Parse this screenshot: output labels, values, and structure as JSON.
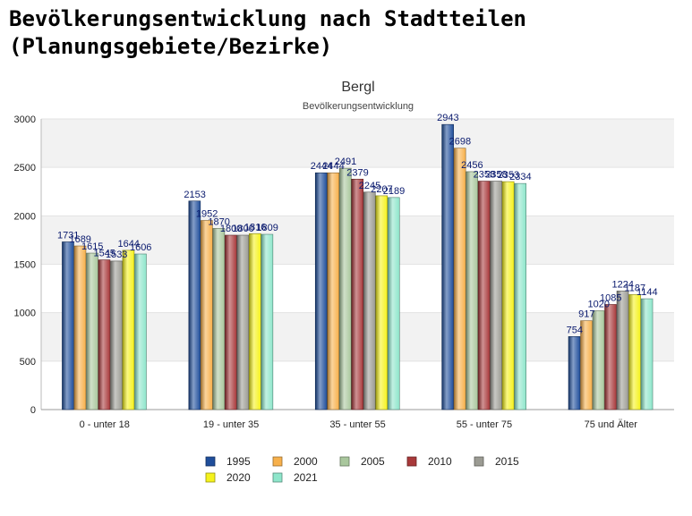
{
  "page": {
    "title_line1": "Bevölkerungsentwicklung nach Stadtteilen",
    "title_line2": "(Planungsgebiete/Bezirke)"
  },
  "chart_data": {
    "type": "bar",
    "title": "Bergl",
    "subtitle": "Bevölkerungsentwicklung",
    "categories": [
      "0 - unter 18",
      "19 - unter 35",
      "35 - unter 55",
      "55 - unter 75",
      "75 und Älter"
    ],
    "ylim": [
      0,
      3000
    ],
    "yticks": [
      0,
      500,
      1000,
      1500,
      2000,
      2500,
      3000
    ],
    "grid": "horizontal alternating bands",
    "legend_position": "bottom",
    "series": [
      {
        "name": "1995",
        "color": "#1f4e9b",
        "values": [
          1731,
          2153,
          2444,
          2943,
          754
        ]
      },
      {
        "name": "2000",
        "color": "#f7b04b",
        "values": [
          1689,
          1952,
          2444,
          2698,
          917
        ]
      },
      {
        "name": "2005",
        "color": "#a9c79d",
        "values": [
          1615,
          1870,
          2491,
          2456,
          1020
        ]
      },
      {
        "name": "2010",
        "color": "#a8383a",
        "values": [
          1545,
          1800,
          2379,
          2358,
          1085
        ]
      },
      {
        "name": "2015",
        "color": "#9b9b93",
        "values": [
          1533,
          1800,
          2245,
          2358,
          1224
        ]
      },
      {
        "name": "2020",
        "color": "#f5f21c",
        "values": [
          1644,
          1816,
          2207,
          2353,
          1187
        ]
      },
      {
        "name": "2021",
        "color": "#8ee6cb",
        "values": [
          1606,
          1809,
          2189,
          2334,
          1144
        ]
      }
    ]
  }
}
